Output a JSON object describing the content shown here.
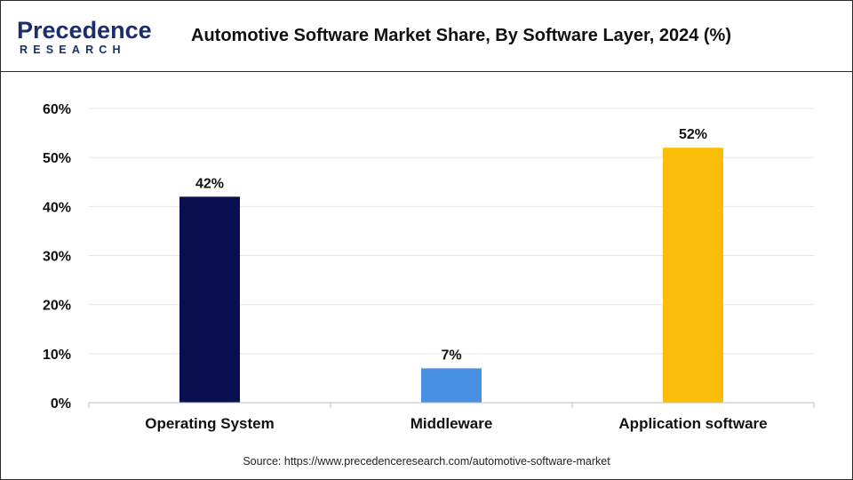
{
  "header": {
    "logo_main": "Precedence",
    "logo_sub": "RESEARCH",
    "title": "Automotive Software Market Share, By Software Layer, 2024 (%)"
  },
  "source": "Source: https://www.precedenceresearch.com/automotive-software-market",
  "chart_data": {
    "type": "bar",
    "title": "Automotive Software Market Share, By Software Layer, 2024 (%)",
    "categories": [
      "Operating System",
      "Middleware",
      "Application software"
    ],
    "values": [
      42,
      7,
      52
    ],
    "data_labels": [
      "42%",
      "7%",
      "52%"
    ],
    "colors": [
      "#0a0f4f",
      "#4a90e2",
      "#fbbd08"
    ],
    "xlabel": "",
    "ylabel": "",
    "ylim": [
      0,
      60
    ],
    "yticks": [
      0,
      10,
      20,
      30,
      40,
      50,
      60
    ],
    "ytick_labels": [
      "0%",
      "10%",
      "20%",
      "30%",
      "40%",
      "50%",
      "60%"
    ],
    "grid": true,
    "legend": "none"
  }
}
